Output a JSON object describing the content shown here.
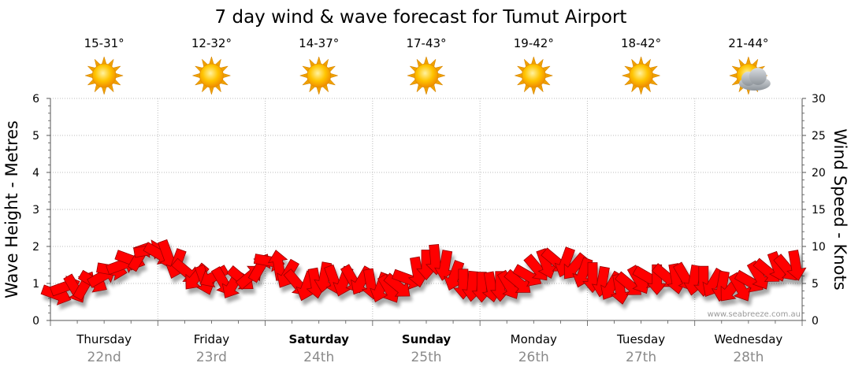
{
  "title": "7 day wind & wave forecast for Tumut Airport",
  "watermark": "www.seabreeze.com.au",
  "colors": {
    "arrow_fill": "#ff0000",
    "arrow_stroke": "#990000",
    "sun": "#ffc400",
    "sun_center": "#ffe066",
    "cloud": "#9ea3a8",
    "grid": "#bbbbbb",
    "axis": "#555555",
    "date_text": "#8a8a8a"
  },
  "days": [
    {
      "name": "Thursday",
      "date": "22nd",
      "temp": "15-31°",
      "icon": "sun-icon",
      "bold": false
    },
    {
      "name": "Friday",
      "date": "23rd",
      "temp": "12-32°",
      "icon": "sun-icon",
      "bold": false
    },
    {
      "name": "Saturday",
      "date": "24th",
      "temp": "14-37°",
      "icon": "sun-icon",
      "bold": true
    },
    {
      "name": "Sunday",
      "date": "25th",
      "temp": "17-43°",
      "icon": "sun-icon",
      "bold": true
    },
    {
      "name": "Monday",
      "date": "26th",
      "temp": "19-42°",
      "icon": "sun-icon",
      "bold": false
    },
    {
      "name": "Tuesday",
      "date": "27th",
      "temp": "18-42°",
      "icon": "sun-icon",
      "bold": false
    },
    {
      "name": "Wednesday",
      "date": "28th",
      "temp": "21-44°",
      "icon": "partly-cloudy-icon",
      "bold": false
    }
  ],
  "chart_data": {
    "type": "line",
    "title": "7 day wind & wave forecast for Tumut Airport",
    "ylabel_left": "Wave Height - Metres",
    "ylabel_right": "Wind Speed - Knots",
    "y_left_range": [
      0,
      6
    ],
    "y_left_ticks": [
      0,
      1,
      2,
      3,
      4,
      5,
      6
    ],
    "y_right_range": [
      0,
      30
    ],
    "y_right_ticks": [
      0,
      5,
      10,
      15,
      20,
      25,
      30
    ],
    "grid": true,
    "x_categories": [
      "Thursday 22nd",
      "Friday 23rd",
      "Saturday 24th",
      "Sunday 25th",
      "Monday 26th",
      "Tuesday 27th",
      "Wednesday 28th"
    ],
    "series": [
      {
        "name": "",
        "marker": "wind direction arrow",
        "points": [
          {
            "x": 0.0,
            "y": 3.5,
            "d": 20
          },
          {
            "x": 0.12,
            "y": 4.6,
            "d": 340
          },
          {
            "x": 0.25,
            "y": 4.2,
            "d": 60
          },
          {
            "x": 0.38,
            "y": 4.8,
            "d": 300
          },
          {
            "x": 0.5,
            "y": 5.2,
            "d": 30
          },
          {
            "x": 0.62,
            "y": 6.0,
            "d": 330
          },
          {
            "x": 0.75,
            "y": 6.8,
            "d": 10
          },
          {
            "x": 0.88,
            "y": 7.5,
            "d": 340
          },
          {
            "x": 1.0,
            "y": 8.2,
            "d": 20
          },
          {
            "x": 1.12,
            "y": 8.7,
            "d": 300
          },
          {
            "x": 1.25,
            "y": 9.5,
            "d": 350
          },
          {
            "x": 1.38,
            "y": 9.0,
            "d": 30
          },
          {
            "x": 1.5,
            "y": 8.8,
            "d": 70
          },
          {
            "x": 1.62,
            "y": 7.6,
            "d": 110
          },
          {
            "x": 1.75,
            "y": 6.6,
            "d": 40
          },
          {
            "x": 1.88,
            "y": 5.8,
            "d": 130
          },
          {
            "x": 2.0,
            "y": 5.4,
            "d": 70
          },
          {
            "x": 2.12,
            "y": 5.9,
            "d": 150
          },
          {
            "x": 2.25,
            "y": 5.2,
            "d": 60
          },
          {
            "x": 2.38,
            "y": 4.8,
            "d": 120
          },
          {
            "x": 2.5,
            "y": 5.6,
            "d": 40
          },
          {
            "x": 2.62,
            "y": 6.0,
            "d": 320
          },
          {
            "x": 2.75,
            "y": 7.2,
            "d": 300
          },
          {
            "x": 2.88,
            "y": 8.0,
            "d": 10
          },
          {
            "x": 3.0,
            "y": 7.5,
            "d": 260
          },
          {
            "x": 3.12,
            "y": 6.2,
            "d": 120
          },
          {
            "x": 3.25,
            "y": 5.0,
            "d": 50
          },
          {
            "x": 3.38,
            "y": 4.6,
            "d": 110
          },
          {
            "x": 3.5,
            "y": 5.0,
            "d": 80
          },
          {
            "x": 3.62,
            "y": 5.8,
            "d": 100
          },
          {
            "x": 3.75,
            "y": 5.4,
            "d": 70
          },
          {
            "x": 3.88,
            "y": 5.2,
            "d": 110
          },
          {
            "x": 4.0,
            "y": 5.5,
            "d": 60
          },
          {
            "x": 4.12,
            "y": 5.3,
            "d": 120
          },
          {
            "x": 4.25,
            "y": 4.9,
            "d": 80
          },
          {
            "x": 4.38,
            "y": 4.4,
            "d": 110
          },
          {
            "x": 4.5,
            "y": 4.2,
            "d": 60
          },
          {
            "x": 4.62,
            "y": 4.6,
            "d": 40
          },
          {
            "x": 4.75,
            "y": 5.6,
            "d": 20
          },
          {
            "x": 4.88,
            "y": 6.5,
            "d": 80
          },
          {
            "x": 5.0,
            "y": 7.5,
            "d": 90
          },
          {
            "x": 5.12,
            "y": 8.2,
            "d": 85
          },
          {
            "x": 5.25,
            "y": 7.4,
            "d": 100
          },
          {
            "x": 5.38,
            "y": 6.0,
            "d": 110
          },
          {
            "x": 5.5,
            "y": 4.9,
            "d": 90
          },
          {
            "x": 5.62,
            "y": 4.6,
            "d": 95
          },
          {
            "x": 5.75,
            "y": 4.5,
            "d": 90
          },
          {
            "x": 5.88,
            "y": 4.5,
            "d": 80
          },
          {
            "x": 6.0,
            "y": 4.6,
            "d": 90
          },
          {
            "x": 6.12,
            "y": 4.7,
            "d": 60
          },
          {
            "x": 6.25,
            "y": 5.1,
            "d": 40
          },
          {
            "x": 6.38,
            "y": 6.0,
            "d": 30
          },
          {
            "x": 6.5,
            "y": 7.0,
            "d": 50
          },
          {
            "x": 6.62,
            "y": 7.6,
            "d": 70
          },
          {
            "x": 6.75,
            "y": 8.0,
            "d": 40
          },
          {
            "x": 6.88,
            "y": 7.8,
            "d": 110
          },
          {
            "x": 7.0,
            "y": 7.2,
            "d": 130
          },
          {
            "x": 7.12,
            "y": 6.4,
            "d": 110
          },
          {
            "x": 7.25,
            "y": 5.8,
            "d": 90
          },
          {
            "x": 7.38,
            "y": 5.2,
            "d": 100
          },
          {
            "x": 7.5,
            "y": 4.6,
            "d": 120
          },
          {
            "x": 7.62,
            "y": 4.2,
            "d": 80
          },
          {
            "x": 7.75,
            "y": 4.8,
            "d": 40
          },
          {
            "x": 7.88,
            "y": 5.4,
            "d": 60
          },
          {
            "x": 8.0,
            "y": 5.8,
            "d": 30
          },
          {
            "x": 8.12,
            "y": 5.5,
            "d": 90
          },
          {
            "x": 8.25,
            "y": 5.9,
            "d": 40
          },
          {
            "x": 8.38,
            "y": 5.6,
            "d": 80
          },
          {
            "x": 8.5,
            "y": 5.8,
            "d": 60
          },
          {
            "x": 8.62,
            "y": 5.4,
            "d": 100
          },
          {
            "x": 8.75,
            "y": 5.3,
            "d": 90
          },
          {
            "x": 8.88,
            "y": 5.0,
            "d": 120
          },
          {
            "x": 9.0,
            "y": 4.6,
            "d": 100
          },
          {
            "x": 9.12,
            "y": 4.2,
            "d": 130
          },
          {
            "x": 9.25,
            "y": 4.4,
            "d": 60
          },
          {
            "x": 9.38,
            "y": 5.2,
            "d": 30
          },
          {
            "x": 9.5,
            "y": 6.0,
            "d": 60
          },
          {
            "x": 9.62,
            "y": 6.6,
            "d": 40
          },
          {
            "x": 9.75,
            "y": 7.2,
            "d": 70
          },
          {
            "x": 9.88,
            "y": 7.0,
            "d": 50
          },
          {
            "x": 10.0,
            "y": 7.4,
            "d": 80
          }
        ]
      }
    ]
  }
}
